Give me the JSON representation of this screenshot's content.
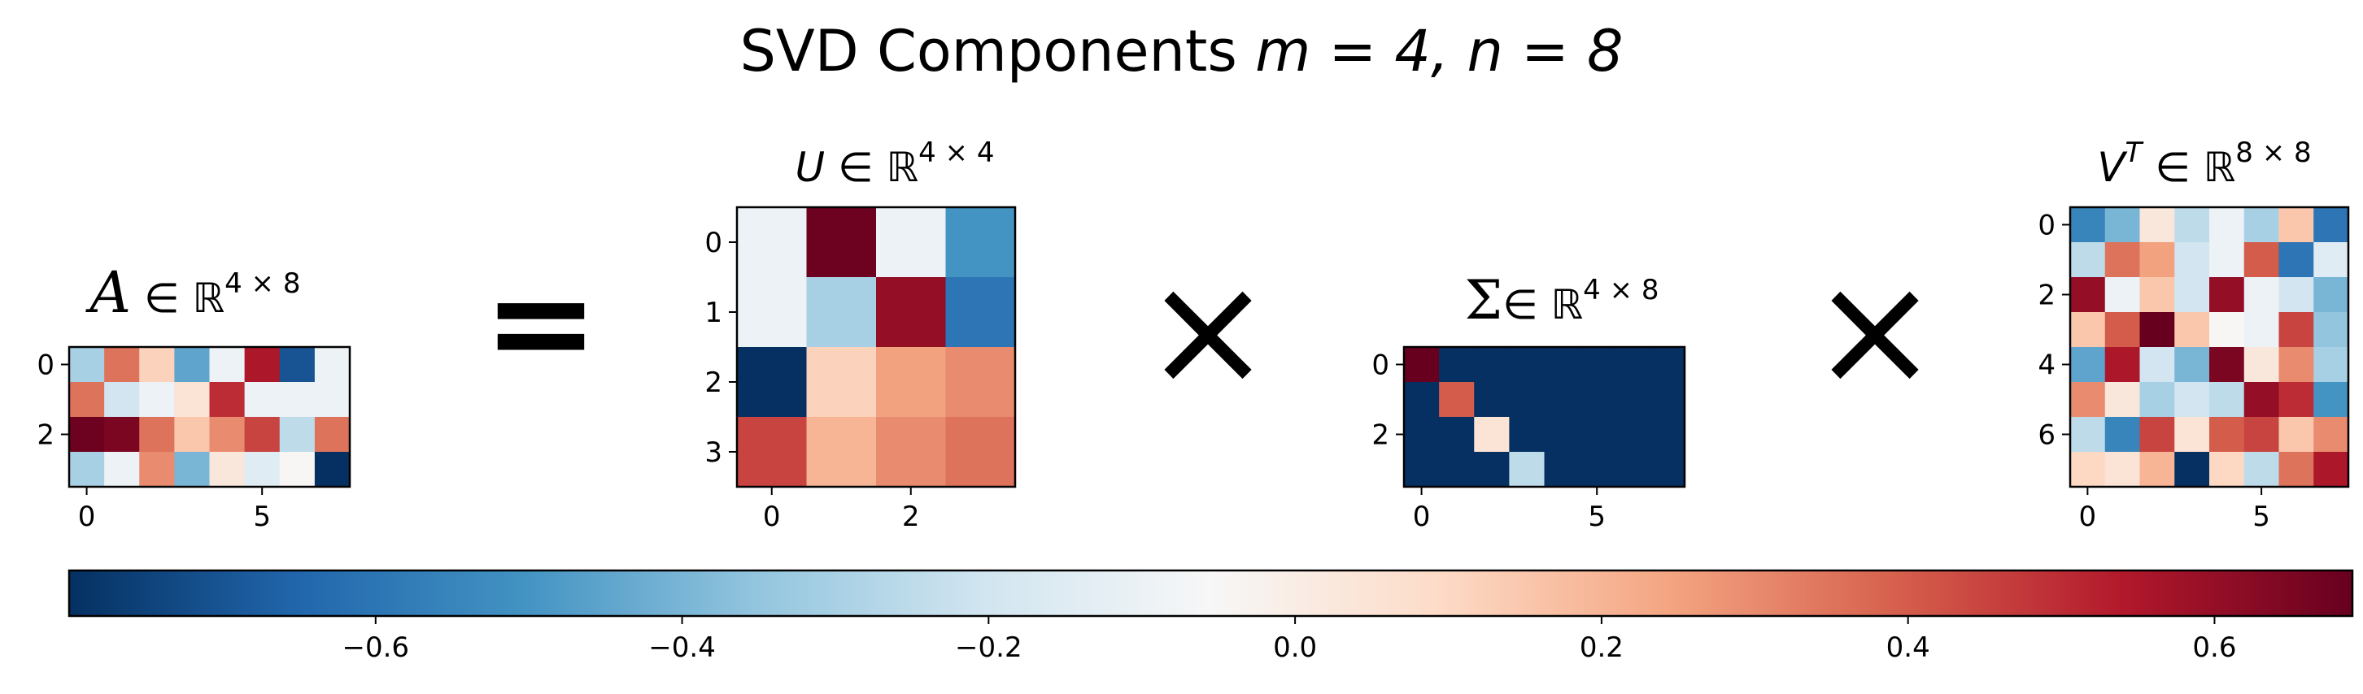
{
  "title": {
    "prefix": "SVD Components ",
    "expr": "m = 4, n = 8"
  },
  "operators": {
    "equals": "=",
    "times": "×"
  },
  "colormap": "RdBu_r",
  "colors": {
    "stops": [
      "#053061",
      "#2166ac",
      "#4393c3",
      "#92c5de",
      "#d1e5f0",
      "#f7f7f7",
      "#fddbc7",
      "#f4a582",
      "#d6604d",
      "#b2182b",
      "#67001f"
    ]
  },
  "chart_data": {
    "type": "heatmap",
    "vmin": -0.8,
    "vmax": 0.69,
    "matrices": [
      {
        "id": "A",
        "title_var": "A",
        "title_space": "∈ ℝ",
        "title_dims": "4 × 8",
        "rows": 4,
        "cols": 8,
        "x_ticks": [
          0,
          5
        ],
        "y_ticks": [
          0,
          2
        ],
        "values": [
          [
            -0.3,
            0.35,
            0.12,
            -0.45,
            -0.1,
            0.55,
            -0.7,
            -0.1
          ],
          [
            0.35,
            -0.2,
            -0.1,
            0.05,
            0.5,
            -0.1,
            -0.1,
            -0.1
          ],
          [
            0.68,
            0.65,
            0.35,
            0.15,
            0.3,
            0.45,
            -0.25,
            0.35
          ],
          [
            -0.3,
            -0.1,
            0.3,
            -0.4,
            0.03,
            -0.15,
            -0.05,
            -0.8
          ]
        ]
      },
      {
        "id": "U",
        "title_var": "U",
        "title_space": "∈ ℝ",
        "title_dims": "4 × 4",
        "rows": 4,
        "cols": 4,
        "x_ticks": [
          0,
          2
        ],
        "y_ticks": [
          0,
          1,
          2,
          3
        ],
        "values": [
          [
            -0.1,
            0.68,
            -0.1,
            -0.5
          ],
          [
            -0.1,
            -0.3,
            0.6,
            -0.6
          ],
          [
            -0.8,
            0.12,
            0.25,
            0.3
          ],
          [
            0.45,
            0.2,
            0.3,
            0.35
          ]
        ]
      },
      {
        "id": "Sigma",
        "title_var": "Σ",
        "title_space": "∈ ℝ",
        "title_dims": "4 × 8",
        "rows": 4,
        "cols": 8,
        "x_ticks": [
          0,
          5
        ],
        "y_ticks": [
          0,
          2
        ],
        "values": [
          [
            0.69,
            -0.8,
            -0.8,
            -0.8,
            -0.8,
            -0.8,
            -0.8,
            -0.8
          ],
          [
            -0.8,
            0.4,
            -0.8,
            -0.8,
            -0.8,
            -0.8,
            -0.8,
            -0.8
          ],
          [
            -0.8,
            -0.8,
            0.05,
            -0.8,
            -0.8,
            -0.8,
            -0.8,
            -0.8
          ],
          [
            -0.8,
            -0.8,
            -0.8,
            -0.25,
            -0.8,
            -0.8,
            -0.8,
            -0.8
          ]
        ]
      },
      {
        "id": "VT",
        "title_var": "V",
        "title_sup_var": "T",
        "title_space": "∈ ℝ",
        "title_dims": "8 × 8",
        "rows": 8,
        "cols": 8,
        "x_ticks": [
          0,
          5
        ],
        "y_ticks": [
          0,
          2,
          4,
          6
        ],
        "values": [
          [
            -0.55,
            -0.4,
            0.03,
            -0.25,
            -0.1,
            -0.3,
            0.15,
            -0.6
          ],
          [
            -0.25,
            0.35,
            0.25,
            -0.2,
            -0.1,
            0.4,
            -0.6,
            -0.15
          ],
          [
            0.6,
            -0.1,
            0.15,
            -0.2,
            0.6,
            -0.1,
            -0.2,
            -0.4
          ],
          [
            0.15,
            0.4,
            0.69,
            0.15,
            -0.05,
            -0.1,
            0.45,
            -0.35
          ],
          [
            -0.45,
            0.55,
            -0.2,
            -0.4,
            0.65,
            0.03,
            0.3,
            -0.3
          ],
          [
            0.3,
            0.03,
            -0.3,
            -0.2,
            -0.25,
            0.6,
            0.5,
            -0.5
          ],
          [
            -0.25,
            -0.55,
            0.45,
            0.05,
            0.4,
            0.45,
            0.15,
            0.3
          ],
          [
            0.1,
            0.05,
            0.2,
            -0.8,
            0.1,
            -0.25,
            0.35,
            0.55
          ]
        ]
      }
    ],
    "colorbar": {
      "ticks": [
        -0.6,
        -0.4,
        -0.2,
        0.0,
        0.2,
        0.4,
        0.6
      ],
      "tick_labels": [
        "−0.6",
        "−0.4",
        "−0.2",
        "0.0",
        "0.2",
        "0.4",
        "0.6"
      ]
    }
  }
}
